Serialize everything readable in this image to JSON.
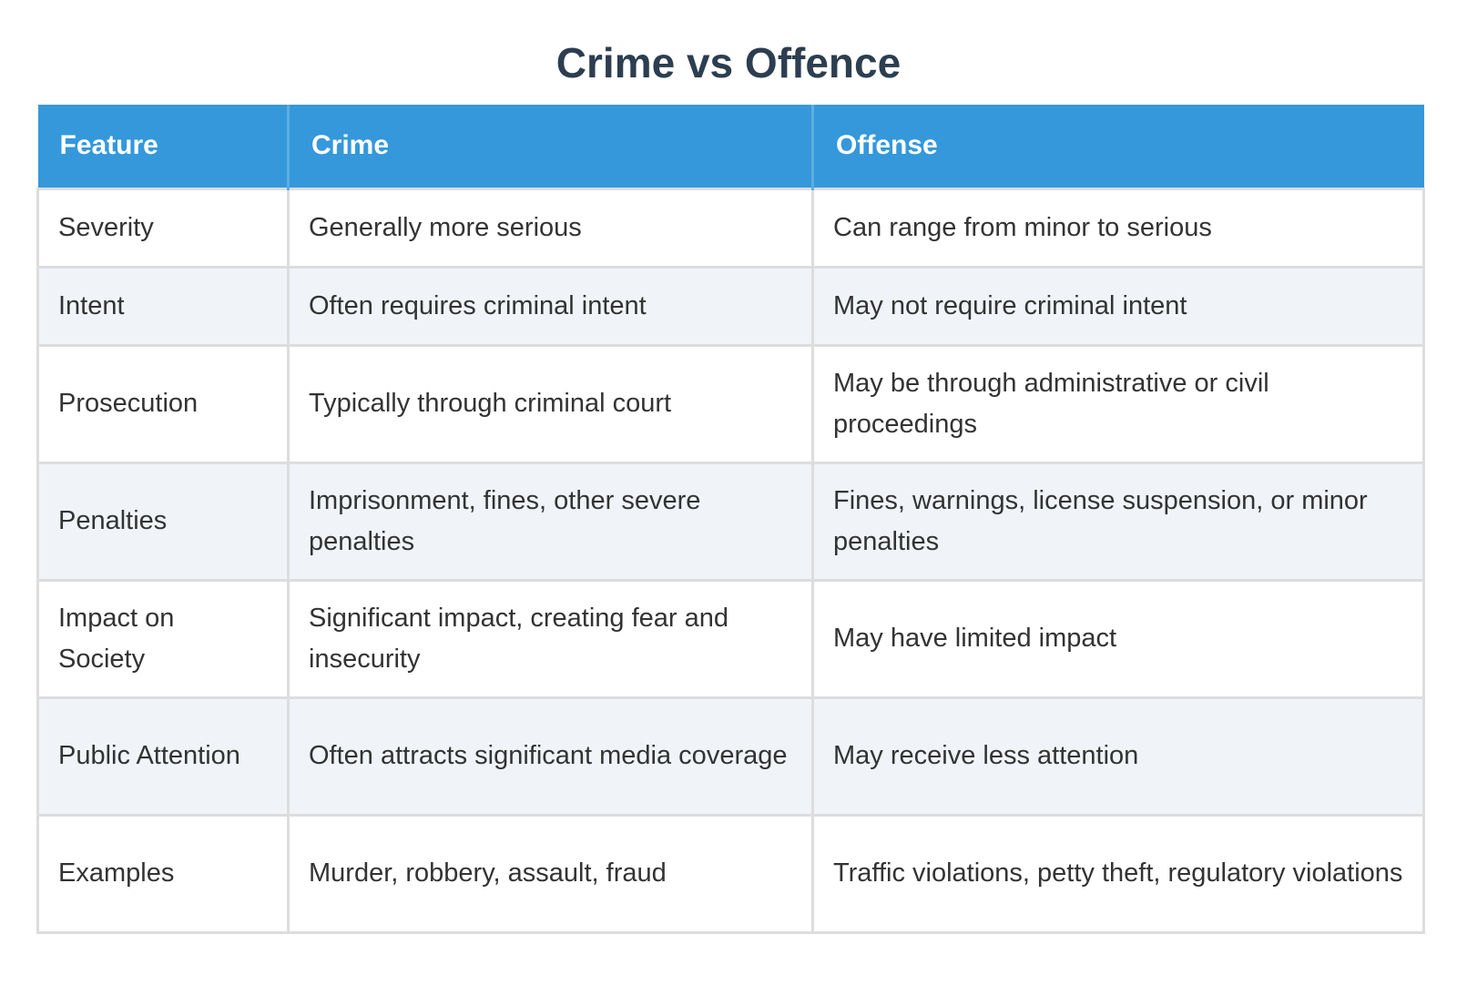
{
  "title": "Crime vs Offence",
  "table": {
    "headers": [
      "Feature",
      "Crime",
      "Offense"
    ],
    "rows": [
      [
        "Severity",
        "Generally more serious",
        "Can range from minor to serious"
      ],
      [
        "Intent",
        "Often requires criminal intent",
        "May not require criminal intent"
      ],
      [
        "Prosecution",
        "Typically through criminal court",
        "May be through administrative or civil proceedings"
      ],
      [
        "Penalties",
        "Imprisonment, fines, other severe penalties",
        "Fines, warnings, license suspension, or minor penalties"
      ],
      [
        "Impact on Society",
        "Significant impact, creating fear and insecurity",
        "May have limited impact"
      ],
      [
        "Public Attention",
        "Often attracts significant media coverage",
        "May receive less attention"
      ],
      [
        "Examples",
        "Murder, robbery, assault, fraud",
        "Traffic violations, petty theft, regulatory violations"
      ]
    ]
  },
  "colors": {
    "header_bg": "#3498db",
    "title_text": "#2c3e50",
    "stripe_bg": "#f0f4f9"
  }
}
